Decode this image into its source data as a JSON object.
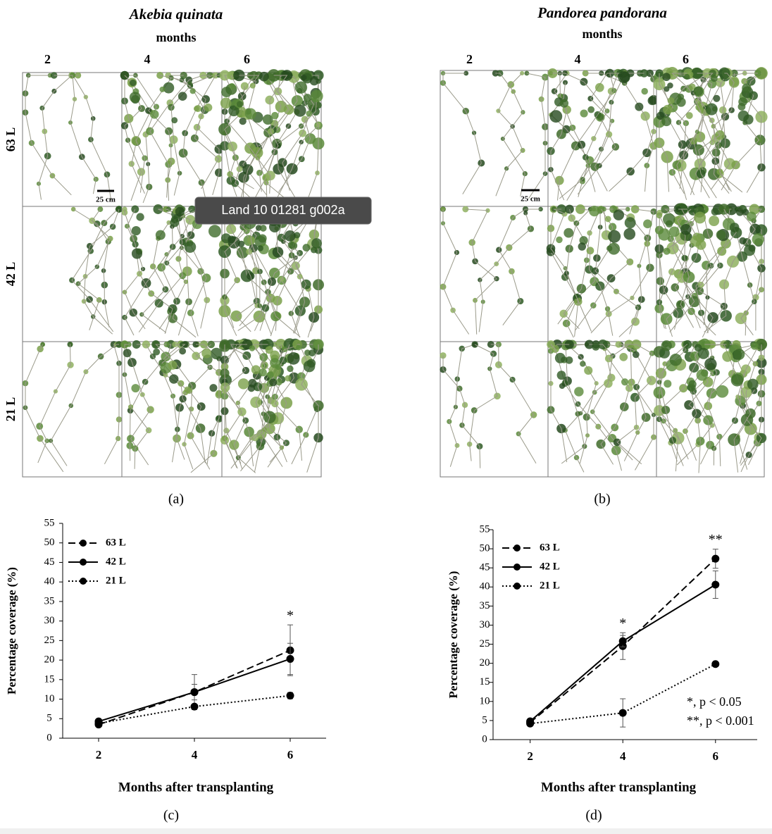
{
  "panel_a": {
    "title": "Akebia quinata",
    "subtitle": "months",
    "columns": [
      "2",
      "4",
      "6"
    ],
    "rows": [
      "63 L",
      "42 L",
      "21 L"
    ],
    "scale_bar": "25 cm",
    "label": "(a)"
  },
  "panel_b": {
    "title": "Pandorea pandorana",
    "subtitle": "months",
    "columns": [
      "2",
      "4",
      "6"
    ],
    "scale_bar": "25 cm",
    "label": "(b)"
  },
  "tooltip": "Land 10 01281 g002a",
  "chart_data": [
    {
      "type": "line",
      "label": "(c)",
      "xlabel": "Months after transplanting",
      "ylabel": "Percentage coverage (%)",
      "x": [
        2,
        4,
        6
      ],
      "xlim": [
        1.25,
        6.75
      ],
      "xticks": [
        2,
        4,
        6
      ],
      "ylim": [
        0,
        55
      ],
      "yticks": [
        0,
        5,
        10,
        15,
        20,
        25,
        30,
        35,
        40,
        45,
        50,
        55
      ],
      "series": [
        {
          "name": "63 L",
          "color": "#000000",
          "dash": "dashed",
          "values": [
            3.5,
            11.8,
            22.5
          ],
          "errors": [
            0.5,
            4.5,
            6.5
          ]
        },
        {
          "name": "42 L",
          "color": "#000000",
          "dash": "solid",
          "values": [
            4.3,
            11.8,
            20.3
          ],
          "errors": [
            0.5,
            2,
            4
          ]
        },
        {
          "name": "21 L",
          "color": "#000000",
          "dash": "dotted",
          "values": [
            3.8,
            8.1,
            10.9
          ],
          "errors": [
            0.3,
            0.5,
            0.8
          ]
        }
      ],
      "annotations": [
        {
          "x": 6,
          "text": "*"
        }
      ]
    },
    {
      "type": "line",
      "label": "(d)",
      "xlabel": "Months after transplanting",
      "ylabel": "Percentage coverage (%)",
      "x": [
        2,
        4,
        6
      ],
      "xlim": [
        1.2,
        6.9
      ],
      "xticks": [
        2,
        4,
        6
      ],
      "ylim": [
        0,
        55
      ],
      "yticks": [
        0,
        5,
        10,
        15,
        20,
        25,
        30,
        35,
        40,
        45,
        50,
        55
      ],
      "series": [
        {
          "name": "63 L",
          "color": "#000000",
          "dash": "dashed",
          "values": [
            4.5,
            24.5,
            47.4
          ],
          "errors": [
            0.3,
            3.5,
            2.5
          ]
        },
        {
          "name": "42 L",
          "color": "#000000",
          "dash": "solid",
          "values": [
            4.8,
            25.8,
            40.6
          ],
          "errors": [
            0.3,
            1.5,
            3.6
          ]
        },
        {
          "name": "21 L",
          "color": "#000000",
          "dash": "dotted",
          "values": [
            4.2,
            7,
            19.8
          ],
          "errors": [
            0.3,
            3.7,
            0.3
          ]
        }
      ],
      "annotations": [
        {
          "x": 4,
          "text": "*"
        },
        {
          "x": 6,
          "text": "**"
        }
      ],
      "notes": [
        "*, p < 0.05",
        "**, p < 0.001"
      ]
    }
  ]
}
